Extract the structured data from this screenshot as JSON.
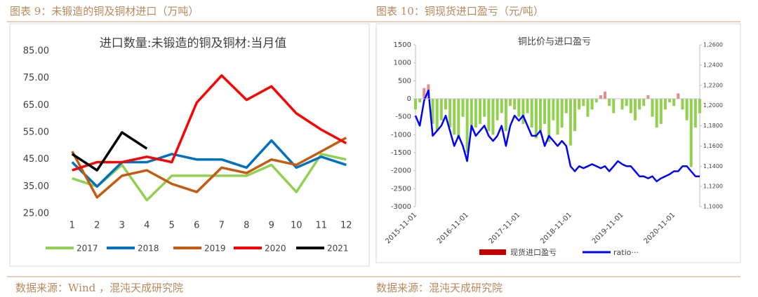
{
  "captions": [
    "图表 9：未锻造的铜及铜材进口（万吨）",
    "图表 10：铜现货进口盈亏（元/吨）"
  ],
  "sources": [
    "数据来源：Wind ，混沌天成研究院",
    "数据来源：混沌天成研究院"
  ],
  "chart_data": [
    {
      "type": "line",
      "title": "进口数量:未锻造的铜及铜材:当月值",
      "categories": [
        "1",
        "2",
        "3",
        "4",
        "5",
        "6",
        "7",
        "8",
        "9",
        "10",
        "11",
        "12"
      ],
      "ylim": [
        25,
        85
      ],
      "yticks": [
        {
          "value": 25,
          "label": "25.00"
        },
        {
          "value": 35,
          "label": "35.00"
        },
        {
          "value": 45,
          "label": "45.00"
        },
        {
          "value": 55,
          "label": "55.00"
        },
        {
          "value": 65,
          "label": "65.00"
        },
        {
          "value": 75,
          "label": "75.00"
        },
        {
          "value": 85,
          "label": "85.00"
        }
      ],
      "grid": false,
      "series": [
        {
          "name": "2017",
          "color": "#92d050",
          "values": [
            38,
            35,
            43,
            30,
            39,
            39,
            39,
            39,
            43,
            33,
            47,
            45
          ]
        },
        {
          "name": "2018",
          "color": "#0070c0",
          "values": [
            44,
            35,
            44,
            44,
            47,
            45,
            45,
            42,
            52,
            42,
            46,
            43
          ]
        },
        {
          "name": "2019",
          "color": "#c55a11",
          "values": [
            48,
            31,
            39,
            41,
            36,
            33,
            42,
            40,
            45,
            43,
            48,
            53
          ]
        },
        {
          "name": "2020",
          "color": "#ff0000",
          "values": [
            41,
            44,
            44,
            46,
            44,
            66,
            76,
            67,
            72,
            62,
            56,
            51
          ]
        },
        {
          "name": "2021",
          "color": "#000000",
          "values": [
            47,
            41,
            55,
            49,
            null,
            null,
            null,
            null,
            null,
            null,
            null,
            null
          ]
        }
      ]
    },
    {
      "type": "combo",
      "title": "铜比价与进口盈亏",
      "x": [
        "2015-11-01",
        "2015-12-01",
        "2016-01-01",
        "2016-02-01",
        "2016-03-01",
        "2016-04-01",
        "2016-05-01",
        "2016-06-01",
        "2016-07-01",
        "2016-08-01",
        "2016-09-01",
        "2016-10-01",
        "2016-11-01",
        "2016-12-01",
        "2017-01-01",
        "2017-02-01",
        "2017-03-01",
        "2017-04-01",
        "2017-05-01",
        "2017-06-01",
        "2017-07-01",
        "2017-08-01",
        "2017-09-01",
        "2017-10-01",
        "2017-11-01",
        "2017-12-01",
        "2018-01-01",
        "2018-02-01",
        "2018-03-01",
        "2018-04-01",
        "2018-05-01",
        "2018-06-01",
        "2018-07-01",
        "2018-08-01",
        "2018-09-01",
        "2018-10-01",
        "2018-11-01",
        "2018-12-01",
        "2019-01-01",
        "2019-02-01",
        "2019-03-01",
        "2019-04-01",
        "2019-05-01",
        "2019-06-01",
        "2019-07-01",
        "2019-08-01",
        "2019-09-01",
        "2019-10-01",
        "2019-11-01",
        "2019-12-01",
        "2020-01-01",
        "2020-02-01",
        "2020-03-01",
        "2020-04-01",
        "2020-05-01",
        "2020-06-01",
        "2020-07-01",
        "2020-08-01",
        "2020-09-01",
        "2020-10-01",
        "2020-11-01",
        "2020-12-01",
        "2021-01-01",
        "2021-02-01",
        "2021-03-01",
        "2021-04-01",
        "2021-05-01"
      ],
      "xticks": [
        "2015-11-01",
        "2016-11-01",
        "2017-11-01",
        "2018-11-01",
        "2019-11-01",
        "2020-11-01"
      ],
      "ylim": [
        -3000,
        1500
      ],
      "yticks": [
        -3000,
        -2500,
        -2000,
        -1500,
        -1000,
        -500,
        0,
        500,
        1000,
        1500
      ],
      "y2lim": [
        1.1,
        1.26
      ],
      "y2ticks": [
        {
          "value": 1.1,
          "label": "1,1000"
        },
        {
          "value": 1.12,
          "label": "1,1200"
        },
        {
          "value": 1.14,
          "label": "1,1400"
        },
        {
          "value": 1.16,
          "label": "1,1600"
        },
        {
          "value": 1.18,
          "label": "1,1800"
        },
        {
          "value": 1.2,
          "label": "1,2000"
        },
        {
          "value": 1.22,
          "label": "1,2200"
        },
        {
          "value": 1.24,
          "label": "1,2400"
        },
        {
          "value": 1.26,
          "label": "1,2600"
        }
      ],
      "series": [
        {
          "name": "现货进口盈亏",
          "type": "bar",
          "color": "#c00000",
          "negative_color": "#92d050",
          "values": [
            -300,
            -100,
            300,
            400,
            -700,
            -900,
            -600,
            -300,
            -800,
            -1000,
            -1100,
            -500,
            -1500,
            -900,
            -800,
            -700,
            -500,
            -900,
            -1000,
            -600,
            -400,
            -900,
            -200,
            -300,
            -500,
            -700,
            -400,
            -800,
            -1100,
            -900,
            -700,
            -1200,
            -600,
            -1000,
            -800,
            -400,
            -1300,
            -900,
            -300,
            -200,
            -500,
            -300,
            -100,
            100,
            200,
            -200,
            -400,
            0,
            -300,
            -200,
            -400,
            -600,
            -300,
            -200,
            100,
            -500,
            -800,
            -700,
            -300,
            -100,
            -200,
            150,
            -300,
            -600,
            -1900,
            -800,
            -400
          ]
        },
        {
          "name": "ratio···",
          "type": "line",
          "axis": "y2",
          "color": "#0000ff",
          "values": [
            1.19,
            1.18,
            1.205,
            1.215,
            1.17,
            1.175,
            1.18,
            1.19,
            1.175,
            1.16,
            1.17,
            1.16,
            1.145,
            1.18,
            1.17,
            1.175,
            1.18,
            1.17,
            1.165,
            1.17,
            1.18,
            1.16,
            1.18,
            1.19,
            1.185,
            1.19,
            1.18,
            1.17,
            1.17,
            1.175,
            1.16,
            1.17,
            1.165,
            1.16,
            1.165,
            1.16,
            1.14,
            1.135,
            1.14,
            1.138,
            1.14,
            1.142,
            1.14,
            1.138,
            1.14,
            1.135,
            1.14,
            1.145,
            1.142,
            1.14,
            1.14,
            1.135,
            1.13,
            1.13,
            1.128,
            1.13,
            1.125,
            1.128,
            1.13,
            1.132,
            1.135,
            1.135,
            1.14,
            1.14,
            1.135,
            1.13,
            1.13
          ]
        }
      ]
    }
  ]
}
